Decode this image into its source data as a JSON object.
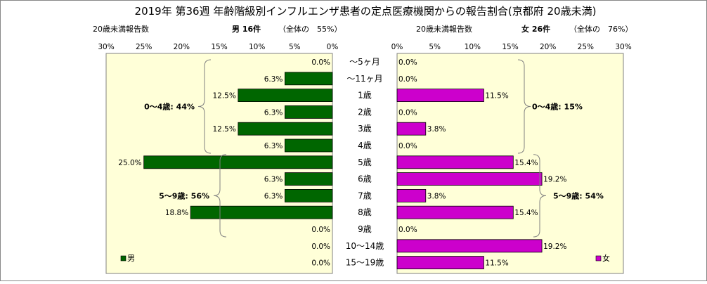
{
  "chart_data": {
    "type": "bar",
    "title": "2019年 第36週 年齢階級別インフルエンザ患者の定点医療機関からの報告割合(京都府 20歳未満)",
    "categories": [
      "〜5ヶ月",
      "〜11ヶ月",
      "1歳",
      "2歳",
      "3歳",
      "4歳",
      "5歳",
      "6歳",
      "7歳",
      "8歳",
      "9歳",
      "10〜14歳",
      "15〜19歳"
    ],
    "x_ticks": [
      "30%",
      "25%",
      "20%",
      "15%",
      "10%",
      "5%",
      "0%"
    ],
    "x_ticks_right": [
      "0%",
      "5%",
      "10%",
      "15%",
      "20%",
      "25%",
      "30%"
    ],
    "xlim": [
      0,
      30
    ],
    "grid": false,
    "legend_position": "bottom-corners",
    "panels": [
      {
        "side": "left",
        "axis_label": "20歳未満報告数",
        "header": "男 16件",
        "total_text": "（全体の　55%）",
        "legend": "男",
        "color": "#006600",
        "panel_color": "#ffffd8",
        "values": [
          0.0,
          6.3,
          12.5,
          6.3,
          12.5,
          6.3,
          25.0,
          6.3,
          6.3,
          18.8,
          0.0,
          0.0,
          0.0
        ],
        "labels": [
          "0.0%",
          "6.3%",
          "12.5%",
          "6.3%",
          "12.5%",
          "6.3%",
          "25.0%",
          "6.3%",
          "6.3%",
          "18.8%",
          "0.0%",
          "0.0%",
          "0.0%"
        ],
        "groups": [
          {
            "label": "0〜4歳: 44%",
            "from": 0,
            "to": 5
          },
          {
            "label": "5〜9歳: 56%",
            "from": 6,
            "to": 10
          }
        ]
      },
      {
        "side": "right",
        "axis_label": "20歳未満報告数",
        "header": "女 26件",
        "total_text": "（全体の　76%）",
        "legend": "女",
        "color": "#cc00cc",
        "panel_color": "#ffffd8",
        "values": [
          0.0,
          0.0,
          11.5,
          0.0,
          3.8,
          0.0,
          15.4,
          19.2,
          3.8,
          15.4,
          0.0,
          19.2,
          11.5
        ],
        "labels": [
          "0.0%",
          "0.0%",
          "11.5%",
          "0.0%",
          "3.8%",
          "0.0%",
          "15.4%",
          "19.2%",
          "3.8%",
          "15.4%",
          "0.0%",
          "19.2%",
          "11.5%"
        ],
        "groups": [
          {
            "label": "0〜4歳: 15%",
            "from": 0,
            "to": 5
          },
          {
            "label": "5〜9歳: 54%",
            "from": 6,
            "to": 10
          }
        ]
      }
    ]
  }
}
